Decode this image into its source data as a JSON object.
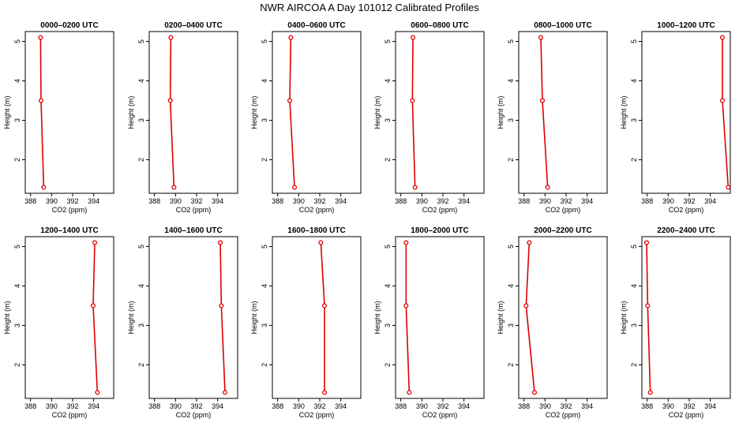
{
  "figure": {
    "title": "NWR AIRCOA A  Day 101012  Calibrated Profiles"
  },
  "colors": {
    "series": "#dd0000",
    "axis": "#000000"
  },
  "chart_data": [
    {
      "type": "line",
      "title": "0000–0200 UTC",
      "xlabel": "CO2 (ppm)",
      "ylabel": "Height (m)",
      "xlim": [
        387.5,
        395.9
      ],
      "ylim": [
        1.15,
        5.25
      ],
      "xticks": [
        388,
        390,
        392,
        394
      ],
      "yticks": [
        2,
        3,
        4,
        5
      ],
      "series": [
        {
          "points": [
            {
              "x": 389.25,
              "y": 1.3
            },
            {
              "x": 389.0,
              "y": 3.5
            },
            {
              "x": 388.95,
              "y": 5.1
            }
          ]
        }
      ]
    },
    {
      "type": "line",
      "title": "0200–0400 UTC",
      "xlabel": "CO2 (ppm)",
      "ylabel": "Height (m)",
      "xlim": [
        387.5,
        395.9
      ],
      "ylim": [
        1.15,
        5.25
      ],
      "xticks": [
        388,
        390,
        392,
        394
      ],
      "yticks": [
        2,
        3,
        4,
        5
      ],
      "series": [
        {
          "points": [
            {
              "x": 389.85,
              "y": 1.3
            },
            {
              "x": 389.5,
              "y": 3.5
            },
            {
              "x": 389.55,
              "y": 5.1
            }
          ]
        }
      ]
    },
    {
      "type": "line",
      "title": "0400–0600 UTC",
      "xlabel": "CO2 (ppm)",
      "ylabel": "Height (m)",
      "xlim": [
        387.5,
        395.9
      ],
      "ylim": [
        1.15,
        5.25
      ],
      "xticks": [
        388,
        390,
        392,
        394
      ],
      "yticks": [
        2,
        3,
        4,
        5
      ],
      "series": [
        {
          "points": [
            {
              "x": 389.6,
              "y": 1.3
            },
            {
              "x": 389.15,
              "y": 3.5
            },
            {
              "x": 389.25,
              "y": 5.1
            }
          ]
        }
      ]
    },
    {
      "type": "line",
      "title": "0600–0800 UTC",
      "xlabel": "CO2 (ppm)",
      "ylabel": "Height (m)",
      "xlim": [
        387.5,
        395.9
      ],
      "ylim": [
        1.15,
        5.25
      ],
      "xticks": [
        388,
        390,
        392,
        394
      ],
      "yticks": [
        2,
        3,
        4,
        5
      ],
      "series": [
        {
          "points": [
            {
              "x": 389.35,
              "y": 1.3
            },
            {
              "x": 389.1,
              "y": 3.5
            },
            {
              "x": 389.15,
              "y": 5.1
            }
          ]
        }
      ]
    },
    {
      "type": "line",
      "title": "0800–1000 UTC",
      "xlabel": "CO2 (ppm)",
      "ylabel": "Height (m)",
      "xlim": [
        387.5,
        395.9
      ],
      "ylim": [
        1.15,
        5.25
      ],
      "xticks": [
        388,
        390,
        392,
        394
      ],
      "yticks": [
        2,
        3,
        4,
        5
      ],
      "series": [
        {
          "points": [
            {
              "x": 390.25,
              "y": 1.3
            },
            {
              "x": 389.75,
              "y": 3.5
            },
            {
              "x": 389.6,
              "y": 5.1
            }
          ]
        }
      ]
    },
    {
      "type": "line",
      "title": "1000–1200 UTC",
      "xlabel": "CO2 (ppm)",
      "ylabel": "Height (m)",
      "xlim": [
        387.5,
        395.9
      ],
      "ylim": [
        1.15,
        5.25
      ],
      "xticks": [
        388,
        390,
        392,
        394
      ],
      "yticks": [
        2,
        3,
        4,
        5
      ],
      "series": [
        {
          "points": [
            {
              "x": 395.7,
              "y": 1.3
            },
            {
              "x": 395.15,
              "y": 3.5
            },
            {
              "x": 395.15,
              "y": 5.1
            }
          ]
        }
      ]
    },
    {
      "type": "line",
      "title": "1200–1400 UTC",
      "xlabel": "CO2 (ppm)",
      "ylabel": "Height (m)",
      "xlim": [
        387.5,
        395.9
      ],
      "ylim": [
        1.15,
        5.25
      ],
      "xticks": [
        388,
        390,
        392,
        394
      ],
      "yticks": [
        2,
        3,
        4,
        5
      ],
      "series": [
        {
          "points": [
            {
              "x": 394.35,
              "y": 1.3
            },
            {
              "x": 393.95,
              "y": 3.5
            },
            {
              "x": 394.1,
              "y": 5.1
            }
          ]
        }
      ]
    },
    {
      "type": "line",
      "title": "1400–1600 UTC",
      "xlabel": "CO2 (ppm)",
      "ylabel": "Height (m)",
      "xlim": [
        387.5,
        395.9
      ],
      "ylim": [
        1.15,
        5.25
      ],
      "xticks": [
        388,
        390,
        392,
        394
      ],
      "yticks": [
        2,
        3,
        4,
        5
      ],
      "series": [
        {
          "points": [
            {
              "x": 394.7,
              "y": 1.3
            },
            {
              "x": 394.35,
              "y": 3.5
            },
            {
              "x": 394.25,
              "y": 5.1
            }
          ]
        }
      ]
    },
    {
      "type": "line",
      "title": "1600–1800 UTC",
      "xlabel": "CO2 (ppm)",
      "ylabel": "Height (m)",
      "xlim": [
        387.5,
        395.9
      ],
      "ylim": [
        1.15,
        5.25
      ],
      "xticks": [
        388,
        390,
        392,
        394
      ],
      "yticks": [
        2,
        3,
        4,
        5
      ],
      "series": [
        {
          "points": [
            {
              "x": 392.45,
              "y": 1.3
            },
            {
              "x": 392.45,
              "y": 3.5
            },
            {
              "x": 392.1,
              "y": 5.1
            }
          ]
        }
      ]
    },
    {
      "type": "line",
      "title": "1800–2000 UTC",
      "xlabel": "CO2 (ppm)",
      "ylabel": "Height (m)",
      "xlim": [
        387.5,
        395.9
      ],
      "ylim": [
        1.15,
        5.25
      ],
      "xticks": [
        388,
        390,
        392,
        394
      ],
      "yticks": [
        2,
        3,
        4,
        5
      ],
      "series": [
        {
          "points": [
            {
              "x": 388.8,
              "y": 1.3
            },
            {
              "x": 388.5,
              "y": 3.5
            },
            {
              "x": 388.5,
              "y": 5.1
            }
          ]
        }
      ]
    },
    {
      "type": "line",
      "title": "2000–2200 UTC",
      "xlabel": "CO2 (ppm)",
      "ylabel": "Height (m)",
      "xlim": [
        387.5,
        395.9
      ],
      "ylim": [
        1.15,
        5.25
      ],
      "xticks": [
        388,
        390,
        392,
        394
      ],
      "yticks": [
        2,
        3,
        4,
        5
      ],
      "series": [
        {
          "points": [
            {
              "x": 389.0,
              "y": 1.3
            },
            {
              "x": 388.2,
              "y": 3.5
            },
            {
              "x": 388.5,
              "y": 5.1
            }
          ]
        }
      ]
    },
    {
      "type": "line",
      "title": "2200–2400 UTC",
      "xlabel": "CO2 (ppm)",
      "ylabel": "Height (m)",
      "xlim": [
        387.5,
        395.9
      ],
      "ylim": [
        1.15,
        5.25
      ],
      "xticks": [
        388,
        390,
        392,
        394
      ],
      "yticks": [
        2,
        3,
        4,
        5
      ],
      "series": [
        {
          "points": [
            {
              "x": 388.3,
              "y": 1.3
            },
            {
              "x": 388.05,
              "y": 3.5
            },
            {
              "x": 387.95,
              "y": 5.1
            }
          ]
        }
      ]
    }
  ]
}
